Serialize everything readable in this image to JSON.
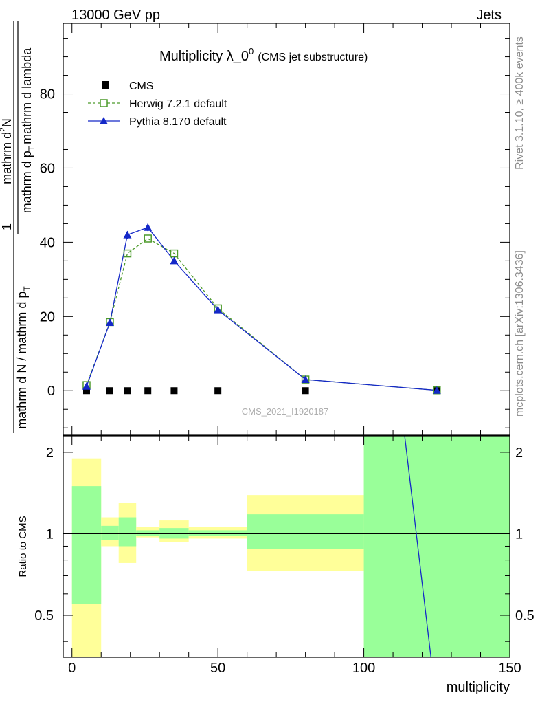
{
  "header": {
    "energy_label": "13000 GeV pp",
    "category_label": "Jets"
  },
  "side_labels": {
    "rivet": "Rivet 3.1.10, ≥ 400k events",
    "mcplots": "mcplots.cern.ch [arXiv:1306.3436]"
  },
  "chart_data": [
    {
      "type": "line",
      "panel": "main",
      "title": "Multiplicity λ_0",
      "title_superscript": "0",
      "title_suffix": "(CMS jet substructure)",
      "watermark": "CMS_2021_I1920187",
      "ylabel": {
        "numerator": "1",
        "denominator": "mathrm d N / mathrm d p",
        "denominator_sub": "T",
        "fraction_num": "mathrm d",
        "fraction_num_sup": "2",
        "fraction_num_tail": "N",
        "fraction_den": "mathrm d p",
        "fraction_den_sub": "T",
        "fraction_den_tail": "mathrm d lambda"
      },
      "xlim": [
        -3,
        150
      ],
      "ylim": [
        -12,
        99
      ],
      "yticks": [
        0,
        20,
        40,
        60,
        80
      ],
      "legend": {
        "position": "top-left",
        "entries": [
          "CMS",
          "Herwig 7.2.1 default",
          "Pythia 8.170 default"
        ]
      },
      "colors": {
        "cms": "#000000",
        "herwig": "#4c9a2a",
        "pythia": "#1428c8"
      },
      "series": [
        {
          "name": "CMS",
          "marker": "filled-square",
          "x": [
            5,
            13,
            19,
            26,
            35,
            50,
            80,
            125
          ],
          "y": [
            0,
            0,
            0,
            0,
            0,
            0,
            0,
            0
          ]
        },
        {
          "name": "Herwig 7.2.1 default",
          "marker": "open-square",
          "line": "dashed",
          "x": [
            5,
            13,
            19,
            26,
            35,
            50,
            80,
            125
          ],
          "y": [
            1.5,
            18.5,
            37,
            41,
            37,
            22.2,
            3,
            0.1
          ]
        },
        {
          "name": "Pythia 8.170 default",
          "marker": "filled-triangle",
          "line": "solid",
          "x": [
            5,
            13,
            19,
            26,
            35,
            50,
            80,
            125
          ],
          "y": [
            1.2,
            18.4,
            42,
            44,
            35,
            21.8,
            3,
            0.1
          ],
          "yerr": [
            0.2,
            0.5,
            1.0,
            1.0,
            0.8,
            0.6,
            0.2,
            0.05
          ]
        }
      ]
    },
    {
      "type": "area",
      "panel": "ratio",
      "ylabel": "Ratio to CMS",
      "xlabel": "multiplicity",
      "xlim": [
        -3,
        150
      ],
      "ylim": [
        0.35,
        2.3
      ],
      "yscale": "log",
      "xticks": [
        0,
        50,
        100,
        150
      ],
      "yticks": [
        0.5,
        1,
        2
      ],
      "bands": [
        {
          "x": [
            0,
            10
          ],
          "outer": [
            0.35,
            1.9
          ],
          "inner": [
            0.55,
            1.5
          ]
        },
        {
          "x": [
            10,
            16
          ],
          "outer": [
            0.9,
            1.15
          ],
          "inner": [
            0.95,
            1.07
          ]
        },
        {
          "x": [
            16,
            22
          ],
          "outer": [
            0.78,
            1.3
          ],
          "inner": [
            0.9,
            1.15
          ]
        },
        {
          "x": [
            22,
            30
          ],
          "outer": [
            0.97,
            1.06
          ],
          "inner": [
            0.98,
            1.03
          ]
        },
        {
          "x": [
            30,
            40
          ],
          "outer": [
            0.93,
            1.12
          ],
          "inner": [
            0.96,
            1.05
          ]
        },
        {
          "x": [
            40,
            60
          ],
          "outer": [
            0.96,
            1.06
          ],
          "inner": [
            0.98,
            1.03
          ]
        },
        {
          "x": [
            60,
            100
          ],
          "outer": [
            0.73,
            1.39
          ],
          "inner": [
            0.88,
            1.18
          ]
        },
        {
          "x": [
            100,
            150
          ],
          "outer": [
            0.35,
            2.3
          ],
          "inner": [
            0.35,
            2.3
          ]
        }
      ],
      "band_colors": {
        "outer": "#ffff99",
        "inner": "#99ff99"
      },
      "reference_line": 1,
      "pythia_ratio_line": {
        "x": [
          114,
          123
        ],
        "y": [
          2.3,
          0.35
        ]
      }
    }
  ]
}
